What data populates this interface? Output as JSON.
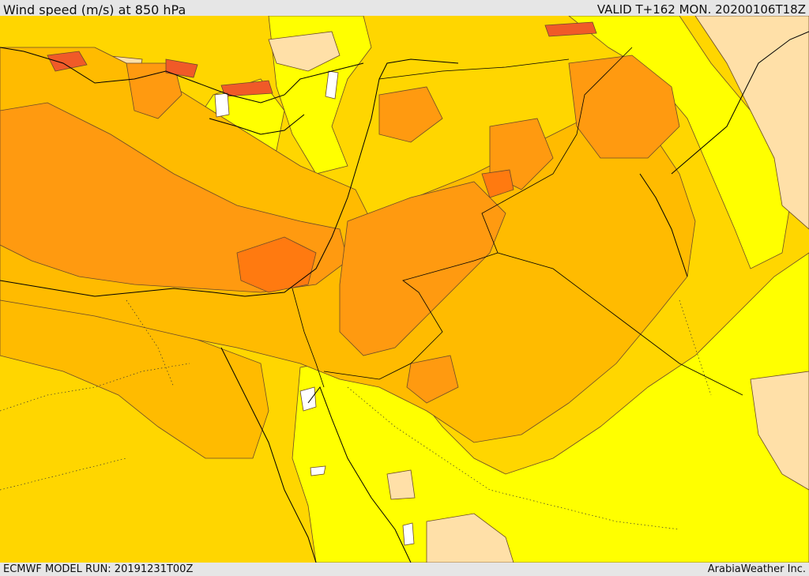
{
  "header": {
    "title": "Wind speed (m/s) at 850 hPa",
    "valid": "VALID T+162 MON. 20200106T18Z"
  },
  "footer": {
    "model_run": "ECMWF MODEL RUN: 20191231T00Z",
    "credit": "ArabiaWeather Inc."
  },
  "map": {
    "field": "wind speed",
    "level": "850 hPa",
    "palette": {
      "light": "#ffe0a8",
      "yellow": "#ffff00",
      "gold": "#ffd600",
      "amber": "#ffbb00",
      "orange": "#ff9a10",
      "dark_orange": "#ff7a10",
      "red_orange": "#f05a28",
      "calm": "#ffffff"
    },
    "line_colors": {
      "contour": "#6b4a2a",
      "coastline": "#000000",
      "border": "#000000"
    }
  }
}
